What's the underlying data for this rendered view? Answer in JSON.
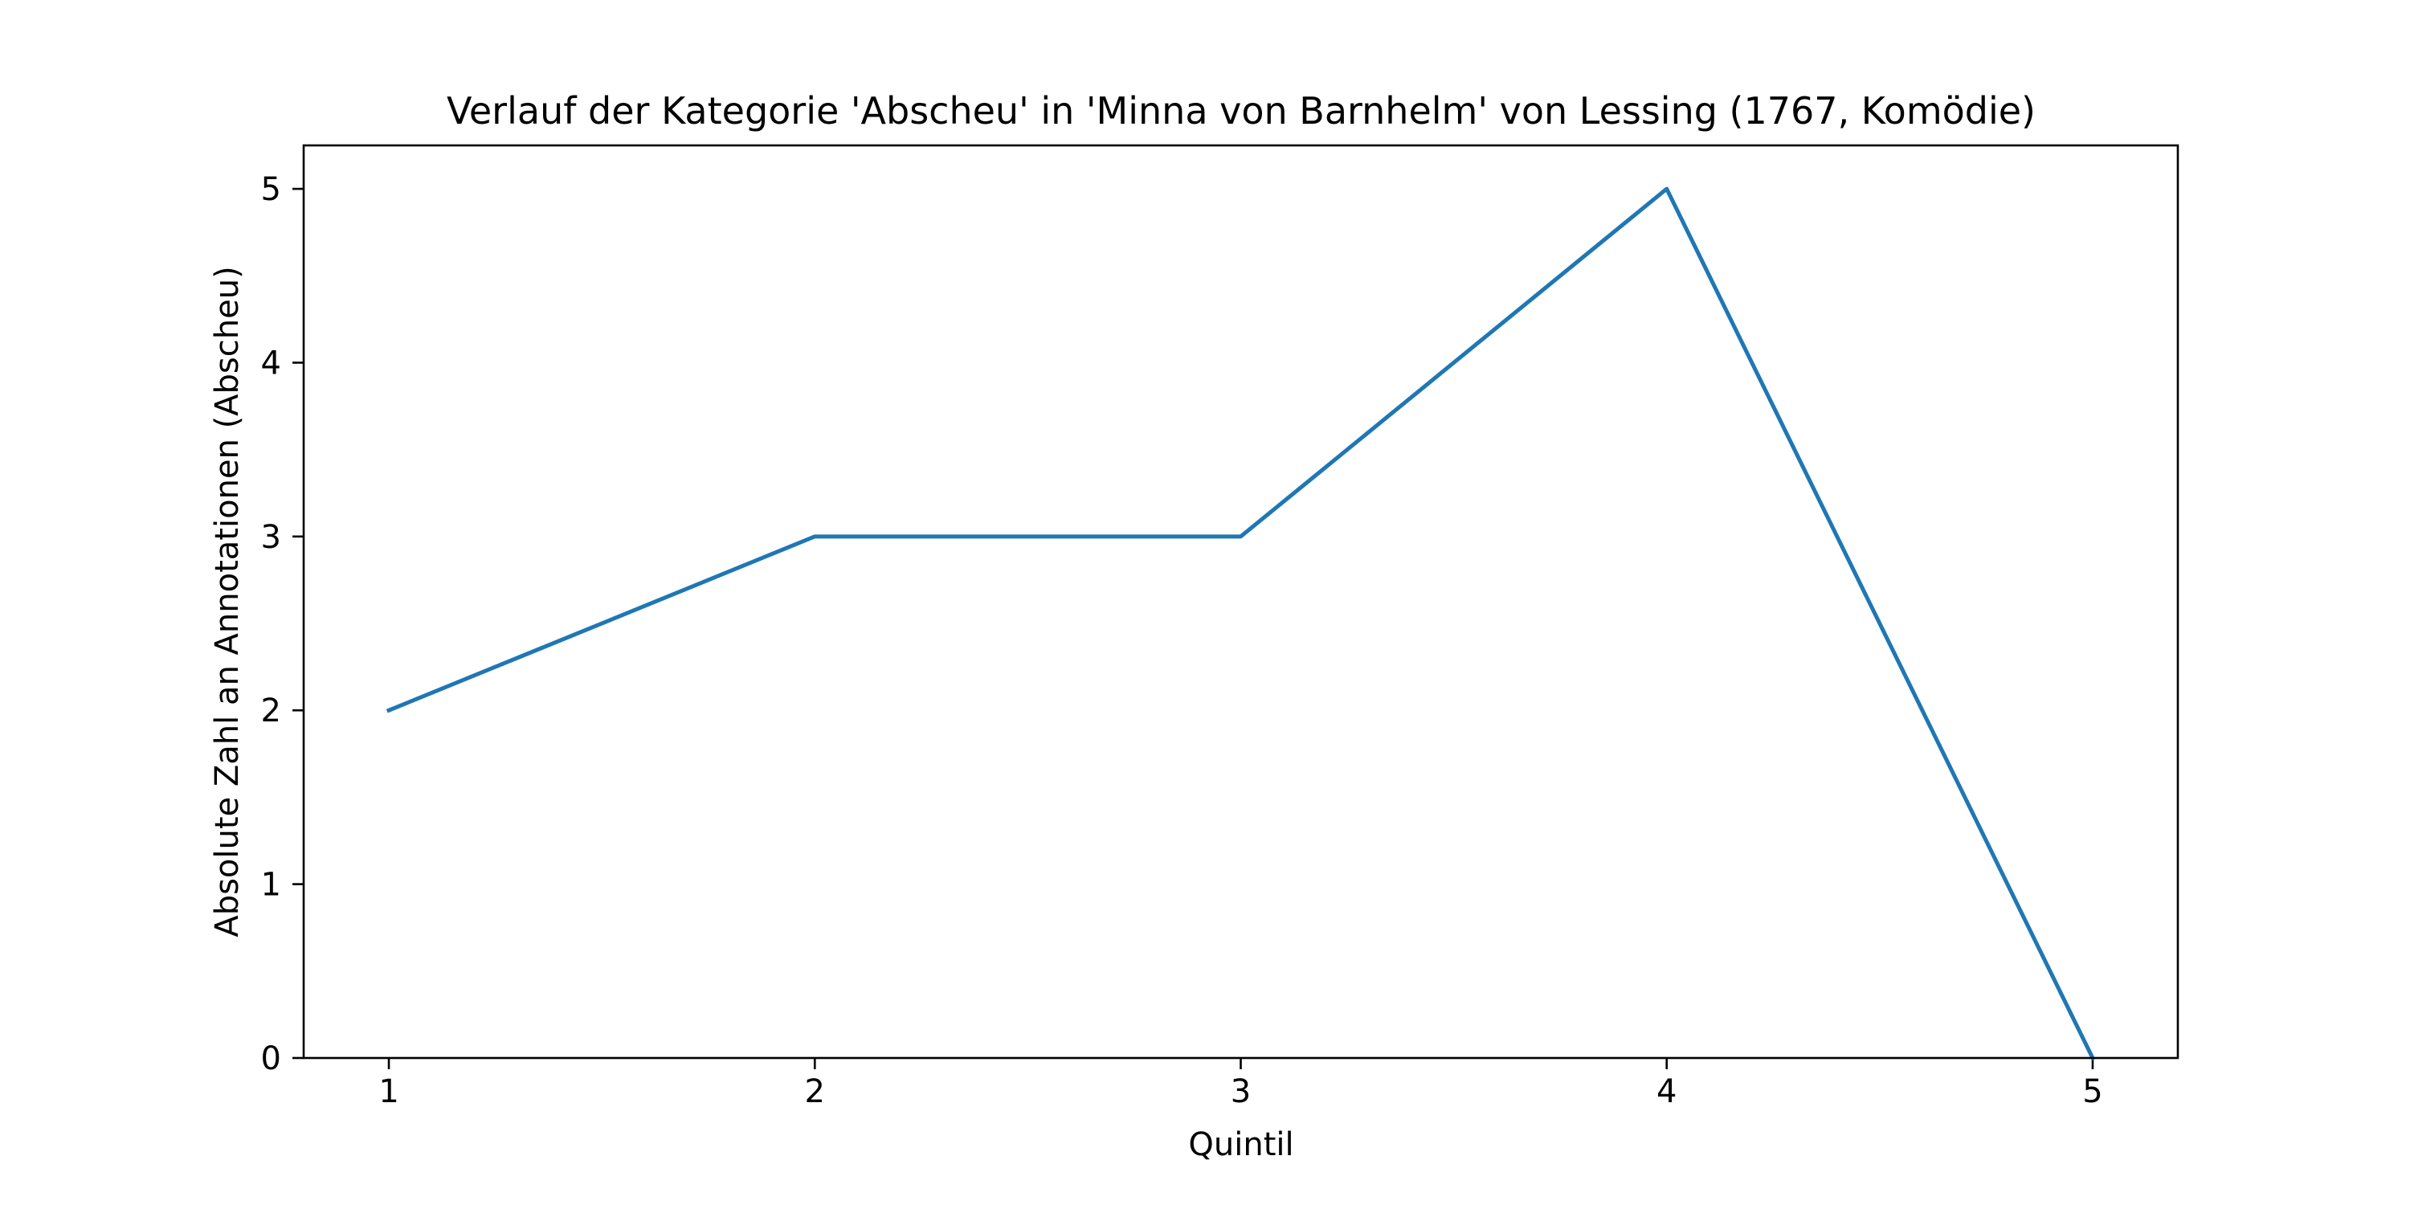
{
  "chart_data": {
    "type": "line",
    "title": "Verlauf der Kategorie 'Abscheu' in 'Minna von Barnhelm' von Lessing (1767, Komödie)",
    "xlabel": "Quintil",
    "ylabel": "Absolute Zahl an Annotationen (Abscheu)",
    "x": [
      1,
      2,
      3,
      4,
      5
    ],
    "x_ticks": [
      "1",
      "2",
      "3",
      "4",
      "5"
    ],
    "y_ticks": [
      "0",
      "1",
      "2",
      "3",
      "4",
      "5"
    ],
    "series": [
      {
        "values": [
          2,
          3,
          3,
          5,
          0
        ],
        "color": "#1f77b4"
      }
    ],
    "xlim": [
      0.8,
      5.2
    ],
    "ylim": [
      0,
      5.25
    ],
    "grid": false,
    "legend": "none"
  }
}
